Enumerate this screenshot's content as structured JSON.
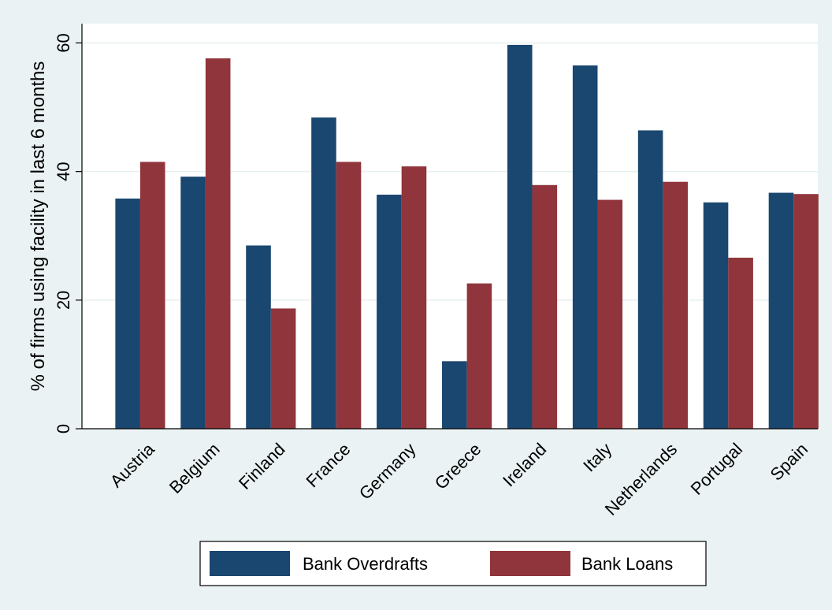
{
  "chart_data": {
    "type": "bar",
    "title": "",
    "xlabel": "",
    "ylabel": "% of firms using facility in last 6 months",
    "ylim": [
      0,
      63
    ],
    "yticks": [
      0,
      20,
      40,
      60
    ],
    "grid": true,
    "legend_position": "bottom",
    "categories": [
      "Austria",
      "Belgium",
      "Finland",
      "France",
      "Germany",
      "Greece",
      "Ireland",
      "Italy",
      "Netherlands",
      "Portugal",
      "Spain"
    ],
    "series": [
      {
        "name": "Bank Overdrafts",
        "color": "#1a476f",
        "values": [
          35.8,
          39.2,
          28.5,
          48.4,
          36.4,
          10.5,
          59.7,
          56.5,
          46.4,
          35.2,
          36.7
        ]
      },
      {
        "name": "Bank Loans",
        "color": "#90353b",
        "values": [
          41.5,
          57.6,
          18.7,
          41.5,
          40.8,
          22.6,
          37.9,
          35.6,
          38.4,
          26.6,
          36.5
        ]
      }
    ]
  }
}
